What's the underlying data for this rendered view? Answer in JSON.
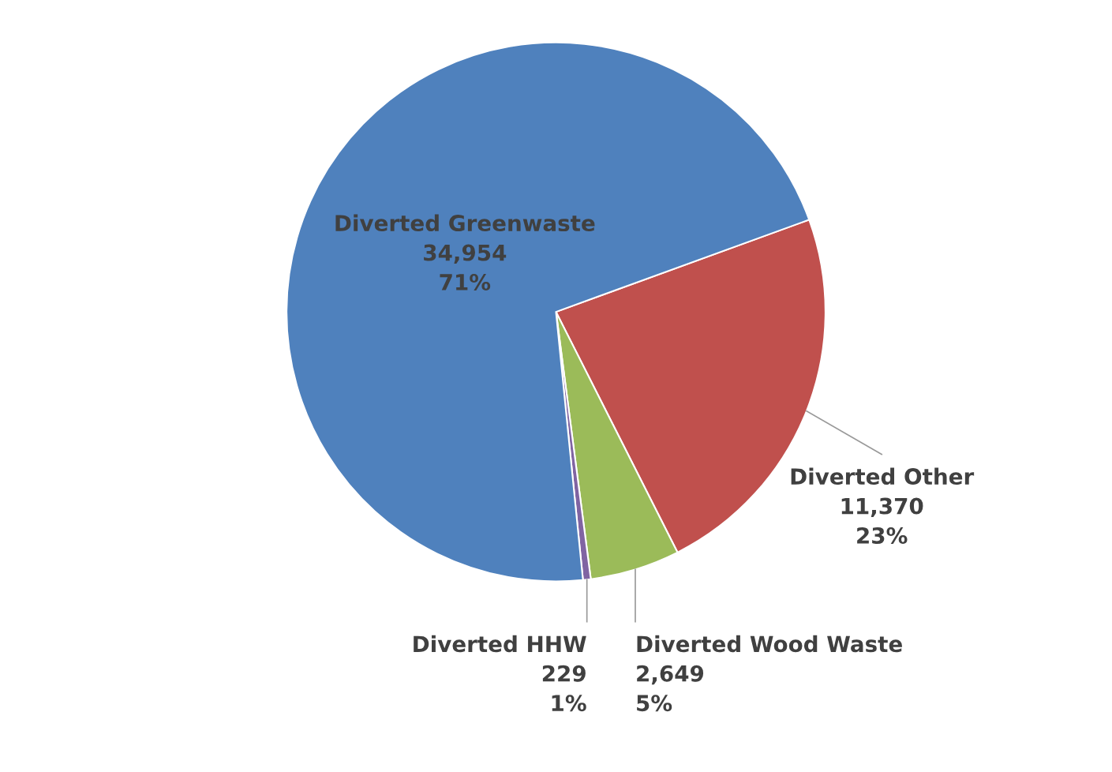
{
  "chart_data": {
    "type": "pie",
    "categories": [
      "Diverted Other",
      "Diverted Wood Waste",
      "Diverted HHW",
      "Diverted Greenwaste"
    ],
    "values": [
      11370,
      2649,
      229,
      34954
    ],
    "value_labels": [
      "11,370\n23%",
      "2,649\n5%",
      "229\n1%",
      "34,954\n71%"
    ],
    "colors": [
      "#c0504d",
      "#9bbb59",
      "#8064a2",
      "#4f81bd"
    ]
  }
}
